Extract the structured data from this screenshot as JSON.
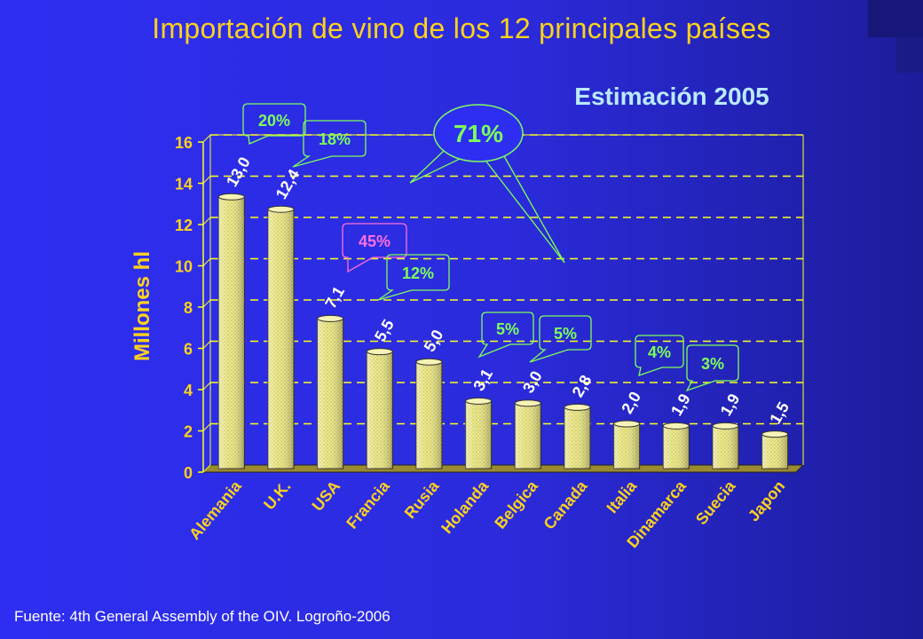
{
  "title": "Importación de vino de los 12 principales países",
  "source": "Fuente: 4th General Assembly of the OIV. Logroño-2006",
  "colors": {
    "title": "#ffd21c",
    "axis_text": "#ffd21c",
    "bar_label": "#ffffff",
    "callout_text": "#7dff5a",
    "callout_text_pink": "#ff6fe0",
    "estimation": "#b9eaff"
  },
  "chart_data": {
    "type": "bar",
    "subtitle": "Estimación 2005",
    "ylabel": "Millones hl",
    "xlabel": "",
    "ylim": [
      0,
      16
    ],
    "yticks": [
      0,
      2,
      4,
      6,
      8,
      10,
      12,
      14,
      16
    ],
    "grid": true,
    "categories": [
      "Alemania",
      "U.K.",
      "USA",
      "Francia",
      "Rusia",
      "Holanda",
      "Belgica",
      "Canada",
      "Italia",
      "Dinamarca",
      "Suecia",
      "Japon"
    ],
    "values": [
      13.0,
      12.4,
      7.1,
      5.5,
      5.0,
      3.1,
      3.0,
      2.8,
      2.0,
      1.9,
      1.9,
      1.5
    ],
    "value_labels": [
      "13,0",
      "12,4",
      "7,1",
      "5,5",
      "5,0",
      "3,1",
      "3,0",
      "2,8",
      "2,0",
      "1,9",
      "1,9",
      "1,5"
    ],
    "annotations": [
      {
        "text": "20%",
        "target": "Alemania"
      },
      {
        "text": "18%",
        "target": "U.K."
      },
      {
        "text": "45%",
        "target": "USA",
        "color": "pink"
      },
      {
        "text": "12%",
        "target": "Francia"
      },
      {
        "text": "5%",
        "target": "Holanda"
      },
      {
        "text": "5%",
        "target": "Belgica"
      },
      {
        "text": "4%",
        "target": "Italia"
      },
      {
        "text": "3%",
        "target": "Dinamarca"
      },
      {
        "text": "71%",
        "target": "Alemania–Rusia"
      }
    ]
  }
}
